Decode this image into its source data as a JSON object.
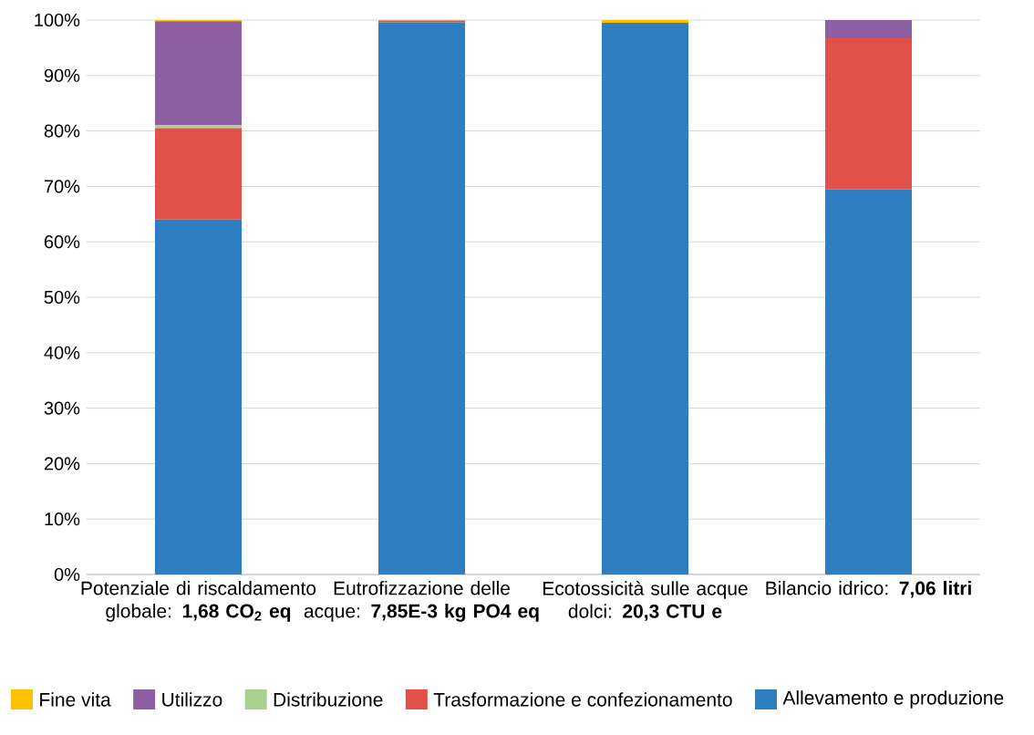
{
  "chart_data": {
    "type": "bar",
    "stacked": true,
    "categories": [
      "Potenziale di riscaldamento globale: **1,68 CO$_{2}$ eq**",
      "Eutrofizzazione delle acque: **7,85E-3 kg PO4 eq**",
      "Ecotossicità sulle acque dolci: **20,3 CTU e**",
      "Bilancio idrico: **7,06 litri**"
    ],
    "series": [
      {
        "name": "Allevamento e produzione",
        "color": "#2e7fc1",
        "values": [
          64,
          99.6,
          99.5,
          69.5
        ]
      },
      {
        "name": "Trasformazione e confezionamento",
        "color": "#e2504a",
        "values": [
          16.5,
          0.3,
          0,
          27.2
        ]
      },
      {
        "name": "Distribuzione",
        "color": "#a9d18e",
        "values": [
          0.5,
          0,
          0,
          0
        ]
      },
      {
        "name": "Utilizzo",
        "color": "#8e5ea2",
        "values": [
          18.8,
          0,
          0,
          3.3
        ]
      },
      {
        "name": "Fine vita",
        "color": "#ffc000",
        "values": [
          0.2,
          0.1,
          0.5,
          0
        ]
      }
    ],
    "ylim": [
      0,
      100
    ],
    "yticks": [
      {
        "value": 0,
        "label": "0%"
      },
      {
        "value": 10,
        "label": "10%"
      },
      {
        "value": 20,
        "label": "20%"
      },
      {
        "value": 30,
        "label": "30%"
      },
      {
        "value": 40,
        "label": "40%"
      },
      {
        "value": 50,
        "label": "50%"
      },
      {
        "value": 60,
        "label": "60%"
      },
      {
        "value": 70,
        "label": "70%"
      },
      {
        "value": 80,
        "label": "80%"
      },
      {
        "value": 90,
        "label": "90%"
      },
      {
        "value": 100,
        "label": "100%"
      }
    ],
    "grid": "y",
    "legend": "bottom"
  }
}
